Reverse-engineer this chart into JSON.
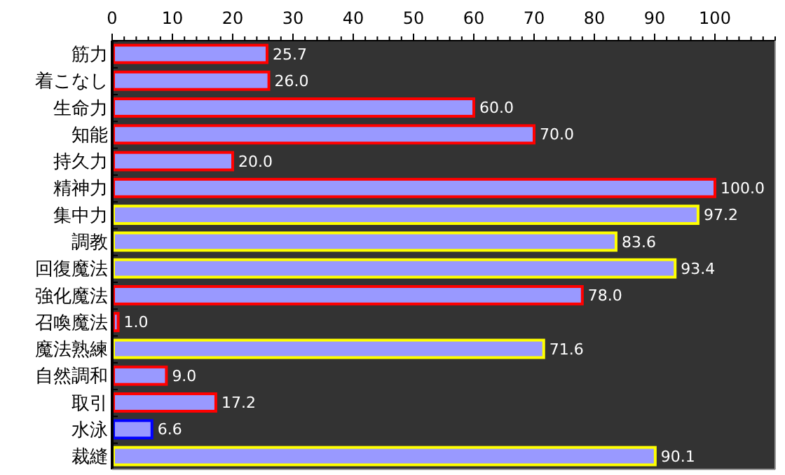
{
  "chart_data": {
    "type": "bar",
    "orientation": "horizontal",
    "categories": [
      "筋力",
      "着こなし",
      "生命力",
      "知能",
      "持久力",
      "精神力",
      "集中力",
      "調教",
      "回復魔法",
      "強化魔法",
      "召喚魔法",
      "魔法熟練",
      "自然調和",
      "取引",
      "水泳",
      "裁縫"
    ],
    "values": [
      25.7,
      26.0,
      60.0,
      70.0,
      20.0,
      100.0,
      97.2,
      83.6,
      93.4,
      78.0,
      1.0,
      71.6,
      9.0,
      17.2,
      6.6,
      90.1
    ],
    "value_labels": [
      "25.7",
      "26.0",
      "60.0",
      "70.0",
      "20.0",
      "100.0",
      "97.2",
      "83.6",
      "93.4",
      "78.0",
      "1.0",
      "71.6",
      "9.0",
      "17.2",
      "6.6",
      "90.1"
    ],
    "color": "#9999ff",
    "colors": [
      "#ff0000",
      "#ff0000",
      "#ff0000",
      "#ff0000",
      "#ff0000",
      "#ff0000",
      "#ffff00",
      "#ffff00",
      "#ffff00",
      "#ff0000",
      "#ff0000",
      "#ffff00",
      "#ff0000",
      "#ff0000",
      "#0000ff",
      "#ffff00"
    ],
    "xlim": [
      0,
      110
    ],
    "xticks": [
      0,
      {
        "value": 2,
        "label": null
      },
      {
        "value": 4,
        "label": null
      },
      {
        "value": 6,
        "label": null
      },
      {
        "value": 8,
        "label": null
      },
      10,
      {
        "value": 12,
        "label": null
      },
      {
        "value": 14,
        "label": null
      },
      {
        "value": 16,
        "label": null
      },
      {
        "value": 18,
        "label": null
      },
      20,
      {
        "value": 22,
        "label": null
      },
      {
        "value": 24,
        "label": null
      },
      {
        "value": 26,
        "label": null
      },
      {
        "value": 28,
        "label": null
      },
      30,
      {
        "value": 32,
        "label": null
      },
      {
        "value": 34,
        "label": null
      },
      {
        "value": 36,
        "label": null
      },
      {
        "value": 38,
        "label": null
      },
      40,
      {
        "value": 42,
        "label": null
      },
      {
        "value": 44,
        "label": null
      },
      {
        "value": 46,
        "label": null
      },
      {
        "value": 48,
        "label": null
      },
      50,
      {
        "value": 52,
        "label": null
      },
      {
        "value": 54,
        "label": null
      },
      {
        "value": 56,
        "label": null
      },
      {
        "value": 58,
        "label": null
      },
      60,
      {
        "value": 62,
        "label": null
      },
      {
        "value": 64,
        "label": null
      },
      {
        "value": 66,
        "label": null
      },
      {
        "value": 68,
        "label": null
      },
      70,
      {
        "value": 72,
        "label": null
      },
      {
        "value": 74,
        "label": null
      },
      {
        "value": 76,
        "label": null
      },
      {
        "value": 78,
        "label": null
      },
      80,
      {
        "value": 82,
        "label": null
      },
      {
        "value": 84,
        "label": null
      },
      {
        "value": 86,
        "label": null
      },
      {
        "value": 88,
        "label": null
      },
      90,
      {
        "value": 92,
        "label": null
      },
      {
        "value": 94,
        "label": null
      },
      {
        "value": 96,
        "label": null
      },
      {
        "value": 98,
        "label": null
      },
      100,
      {
        "value": 102,
        "label": null
      },
      {
        "value": 104,
        "label": null
      },
      {
        "value": 106,
        "label": null
      },
      {
        "value": 108,
        "label": null
      },
      {
        "value": 110,
        "label": null
      }
    ],
    "grid": false
  }
}
